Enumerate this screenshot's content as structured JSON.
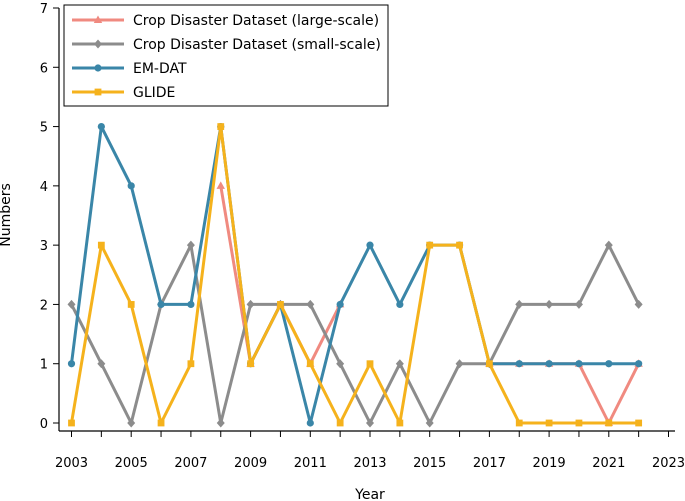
{
  "chart_data": {
    "type": "line",
    "title": "",
    "xlabel": "Year",
    "ylabel": "Numbers",
    "xlim": [
      2003,
      2023
    ],
    "ylim": [
      0,
      7
    ],
    "x_ticks": [
      "2003",
      "2005",
      "2007",
      "2009",
      "2011",
      "2013",
      "2015",
      "2017",
      "2019",
      "2021",
      "2023"
    ],
    "y_ticks": [
      "0",
      "1",
      "2",
      "3",
      "4",
      "5",
      "6",
      "7"
    ],
    "x": [
      2003,
      2004,
      2005,
      2006,
      2007,
      2008,
      2009,
      2010,
      2011,
      2012,
      2013,
      2014,
      2015,
      2016,
      2017,
      2018,
      2019,
      2020,
      2021,
      2022
    ],
    "legend_position": "top-left",
    "series": [
      {
        "name": "Crop Disaster Dataset (large-scale)",
        "color": "#f08a80",
        "marker": "triangle",
        "values": [
          null,
          null,
          null,
          null,
          null,
          4,
          1,
          2,
          1,
          2,
          null,
          null,
          null,
          null,
          1,
          1,
          1,
          1,
          0,
          1
        ]
      },
      {
        "name": "Crop Disaster Dataset (small-scale)",
        "color": "#8c8c8c",
        "marker": "diamond",
        "values": [
          2,
          1,
          0,
          2,
          3,
          0,
          2,
          2,
          2,
          1,
          0,
          1,
          0,
          1,
          1,
          2,
          2,
          2,
          3,
          2
        ]
      },
      {
        "name": "EM-DAT",
        "color": "#3a86a8",
        "marker": "circle",
        "values": [
          1,
          5,
          4,
          2,
          2,
          5,
          1,
          2,
          0,
          2,
          3,
          2,
          3,
          3,
          1,
          1,
          1,
          1,
          1,
          1
        ]
      },
      {
        "name": "GLIDE",
        "color": "#f5b21c",
        "marker": "square",
        "values": [
          0,
          3,
          2,
          0,
          1,
          5,
          1,
          2,
          1,
          0,
          1,
          0,
          3,
          3,
          1,
          0,
          0,
          0,
          0,
          0
        ]
      }
    ]
  }
}
